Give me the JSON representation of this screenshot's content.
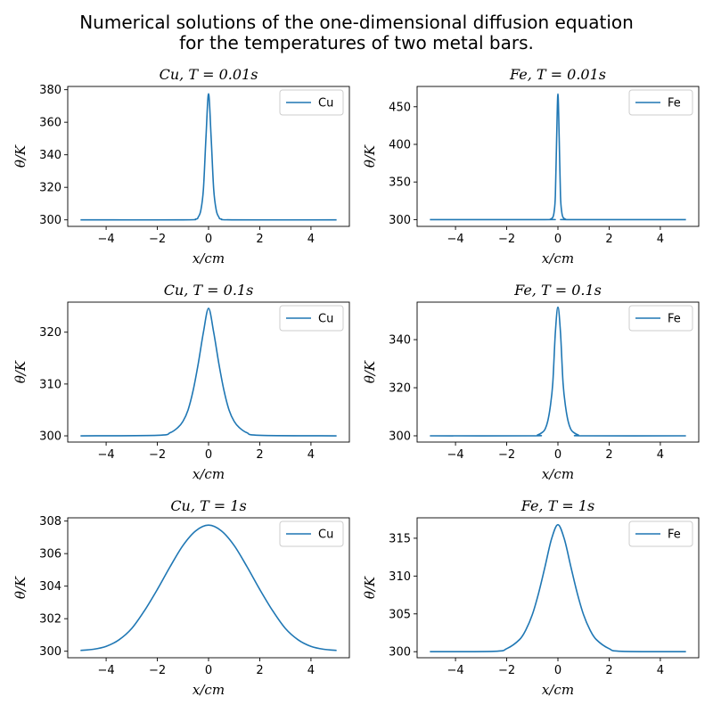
{
  "figure": {
    "suptitle_lines": [
      "Numerical solutions of the one-dimensional diffusion equation",
      "for the temperatures of two metal bars."
    ]
  },
  "chart_data": [
    {
      "type": "line",
      "title": "Cu, T = 0.01s",
      "xlabel": "x/cm",
      "ylabel": "θ/K",
      "xlim": [
        -5.5,
        5.5
      ],
      "ylim": [
        296,
        382
      ],
      "xticks": [
        -4,
        -2,
        0,
        2,
        4
      ],
      "yticks": [
        300,
        320,
        340,
        360,
        380
      ],
      "legend": "top-right",
      "grid": false,
      "series": [
        {
          "name": "Cu",
          "color": "#1f77b4",
          "x": [
            -5,
            -1,
            -0.5,
            -0.4,
            -0.3,
            -0.2,
            -0.1,
            0,
            0.1,
            0.2,
            0.3,
            0.4,
            0.5,
            1,
            5
          ],
          "y": [
            300,
            300,
            300.5,
            301.8,
            306,
            319,
            351,
            377.5,
            351,
            319,
            306,
            301.8,
            300.5,
            300,
            300
          ]
        }
      ]
    },
    {
      "type": "line",
      "title": "Fe, T = 0.01s",
      "xlabel": "x/cm",
      "ylabel": "θ/K",
      "xlim": [
        -5.5,
        5.5
      ],
      "ylim": [
        291,
        477
      ],
      "xticks": [
        -4,
        -2,
        0,
        2,
        4
      ],
      "yticks": [
        300,
        350,
        400,
        450
      ],
      "legend": "top-right",
      "grid": false,
      "series": [
        {
          "name": "Fe",
          "color": "#1f77b4",
          "x": [
            -5,
            -0.5,
            -0.3,
            -0.2,
            -0.15,
            -0.1,
            -0.05,
            0,
            0.05,
            0.1,
            0.15,
            0.2,
            0.3,
            0.5,
            5
          ],
          "y": [
            300,
            300,
            300.4,
            303,
            310,
            332,
            408,
            467,
            408,
            332,
            310,
            303,
            300.4,
            300,
            300
          ]
        }
      ]
    },
    {
      "type": "line",
      "title": "Cu, T = 0.1s",
      "xlabel": "x/cm",
      "ylabel": "θ/K",
      "xlim": [
        -5.5,
        5.5
      ],
      "ylim": [
        298.8,
        325.8
      ],
      "xticks": [
        -4,
        -2,
        0,
        2,
        4
      ],
      "yticks": [
        300,
        310,
        320
      ],
      "legend": "top-right",
      "grid": false,
      "series": [
        {
          "name": "Cu",
          "color": "#1f77b4",
          "x": [
            -5,
            -2,
            -1.5,
            -1.2,
            -1,
            -0.8,
            -0.6,
            -0.4,
            -0.2,
            0,
            0.2,
            0.4,
            0.6,
            0.8,
            1,
            1.2,
            1.5,
            2,
            5
          ],
          "y": [
            300,
            300.1,
            300.6,
            301.6,
            302.8,
            305,
            308.8,
            314,
            320,
            324.6,
            320,
            314,
            308.8,
            305,
            302.8,
            301.6,
            300.6,
            300.1,
            300
          ]
        }
      ]
    },
    {
      "type": "line",
      "title": "Fe, T = 0.1s",
      "xlabel": "x/cm",
      "ylabel": "θ/K",
      "xlim": [
        -5.5,
        5.5
      ],
      "ylim": [
        297.4,
        355.6
      ],
      "xticks": [
        -4,
        -2,
        0,
        2,
        4
      ],
      "yticks": [
        300,
        320,
        340
      ],
      "legend": "top-right",
      "grid": false,
      "series": [
        {
          "name": "Fe",
          "color": "#1f77b4",
          "x": [
            -5,
            -1,
            -0.8,
            -0.6,
            -0.5,
            -0.4,
            -0.3,
            -0.2,
            -0.1,
            0,
            0.1,
            0.2,
            0.3,
            0.4,
            0.5,
            0.6,
            0.8,
            1,
            5
          ],
          "y": [
            300,
            300,
            300.3,
            301.5,
            302.8,
            306,
            312,
            322,
            343,
            353.5,
            343,
            322,
            312,
            306,
            302.8,
            301.5,
            300.3,
            300,
            300
          ]
        }
      ]
    },
    {
      "type": "line",
      "title": "Cu, T = 1s",
      "xlabel": "x/cm",
      "ylabel": "θ/K",
      "xlim": [
        -5.5,
        5.5
      ],
      "ylim": [
        299.6,
        308.2
      ],
      "xticks": [
        -4,
        -2,
        0,
        2,
        4
      ],
      "yticks": [
        300,
        302,
        304,
        306,
        308
      ],
      "legend": "top-right",
      "grid": false,
      "series": [
        {
          "name": "Cu",
          "color": "#1f77b4",
          "x": [
            -5,
            -4.5,
            -4,
            -3.5,
            -3,
            -2.5,
            -2,
            -1.5,
            -1,
            -0.5,
            0,
            0.5,
            1,
            1.5,
            2,
            2.5,
            3,
            3.5,
            4,
            4.5,
            5
          ],
          "y": [
            300.05,
            300.12,
            300.3,
            300.7,
            301.4,
            302.5,
            303.8,
            305.2,
            306.5,
            307.4,
            307.75,
            307.4,
            306.5,
            305.2,
            303.8,
            302.5,
            301.4,
            300.7,
            300.3,
            300.12,
            300.05
          ]
        }
      ]
    },
    {
      "type": "line",
      "title": "Fe, T = 1s",
      "xlabel": "x/cm",
      "ylabel": "θ/K",
      "xlim": [
        -5.5,
        5.5
      ],
      "ylim": [
        299.2,
        317.7
      ],
      "xticks": [
        -4,
        -2,
        0,
        2,
        4
      ],
      "yticks": [
        300,
        305,
        310,
        315
      ],
      "legend": "top-right",
      "grid": false,
      "series": [
        {
          "name": "Fe",
          "color": "#1f77b4",
          "x": [
            -5,
            -2.5,
            -2,
            -1.5,
            -1.25,
            -1,
            -0.75,
            -0.5,
            -0.25,
            0,
            0.25,
            0.5,
            0.75,
            1,
            1.25,
            1.5,
            2,
            2.5,
            5
          ],
          "y": [
            300,
            300.05,
            300.4,
            301.6,
            302.9,
            304.9,
            307.8,
            311.3,
            314.9,
            316.8,
            314.9,
            311.3,
            307.8,
            304.9,
            302.9,
            301.6,
            300.4,
            300.05,
            300
          ]
        }
      ]
    }
  ]
}
